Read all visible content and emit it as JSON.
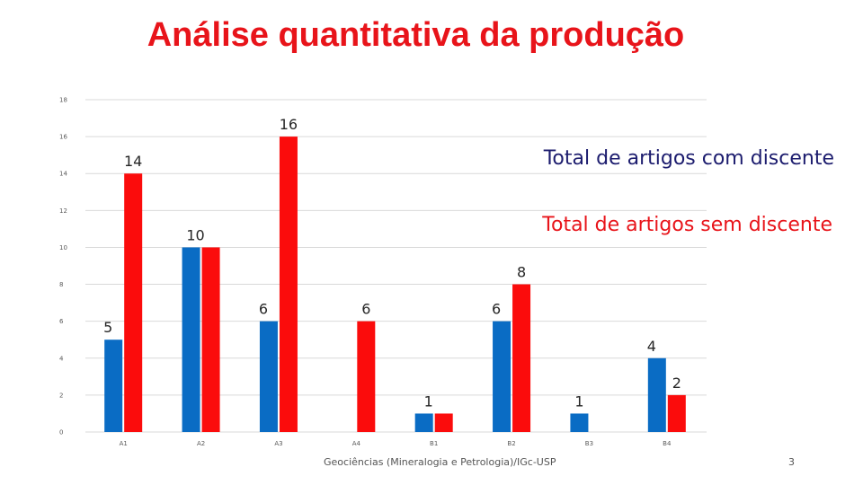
{
  "slide": {
    "title": "Análise quantitativa da produção",
    "footer": "Geociências (Mineralogia e Petrologia)/IGc-USP",
    "page_number": "3"
  },
  "colors": {
    "title": "#e8141a",
    "with_student": "#0a6cc4",
    "without_student": "#fb0c0c",
    "legend_with": "#1c1c6e",
    "legend_without": "#e8141a",
    "gridline": "#d9d9d9"
  },
  "chart_data": {
    "type": "bar",
    "title": "Análise quantitativa da produção",
    "categories": [
      "A1",
      "A2",
      "A3",
      "A4",
      "B1",
      "B2",
      "B3",
      "B4"
    ],
    "series": [
      {
        "name": "Total de artigos com discente",
        "values": [
          5,
          10,
          6,
          null,
          1,
          6,
          1,
          4
        ]
      },
      {
        "name": "Total de artigos sem discente",
        "values": [
          14,
          10,
          16,
          6,
          1,
          8,
          null,
          2
        ]
      }
    ],
    "yticks": [
      0,
      2,
      4,
      6,
      8,
      10,
      12,
      14,
      16,
      18
    ],
    "ylim": [
      0,
      18
    ],
    "grid": true,
    "xlabel": "",
    "ylabel": "",
    "legend_position": "right",
    "data_labels": [
      {
        "text": "5",
        "category": "A1",
        "series": 0
      },
      {
        "text": "14",
        "category": "A1",
        "series": 1
      },
      {
        "text": "10",
        "category": "A2",
        "series": "both"
      },
      {
        "text": "6",
        "category": "A3",
        "series": 0
      },
      {
        "text": "16",
        "category": "A3",
        "series": 1
      },
      {
        "text": "6",
        "category": "A4",
        "series": 1
      },
      {
        "text": "1",
        "category": "B1",
        "series": "both"
      },
      {
        "text": "6",
        "category": "B2",
        "series": 0
      },
      {
        "text": "8",
        "category": "B2",
        "series": 1
      },
      {
        "text": "1",
        "category": "B3",
        "series": 0
      },
      {
        "text": "4",
        "category": "B4",
        "series": 0
      },
      {
        "text": "2",
        "category": "B4",
        "series": 1
      }
    ]
  }
}
